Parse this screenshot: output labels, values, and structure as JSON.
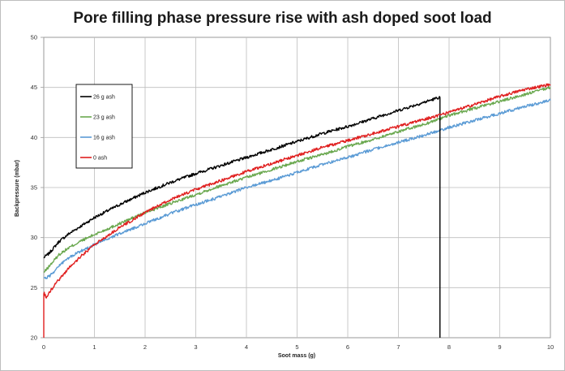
{
  "chart_data": {
    "type": "line",
    "title": "Pore filling phase pressure rise with ash doped soot load",
    "xlabel": "Soot mass (g)",
    "ylabel": "Backpressure (mbar)",
    "xlim": [
      0,
      10
    ],
    "ylim": [
      20,
      50
    ],
    "xticks": [
      "0",
      "1",
      "2",
      "3",
      "4",
      "5",
      "6",
      "7",
      "8",
      "9",
      "10"
    ],
    "yticks": [
      "20",
      "25",
      "30",
      "35",
      "40",
      "45",
      "50"
    ],
    "grid": true,
    "legend_position": "top-left",
    "series": [
      {
        "name": "26 g ash",
        "color": "#000000",
        "x": [
          0,
          0.1,
          0.2,
          0.3,
          0.5,
          0.75,
          1.0,
          1.5,
          2.0,
          2.5,
          3.0,
          3.5,
          4.0,
          4.5,
          5.0,
          5.5,
          6.0,
          6.5,
          7.0,
          7.5,
          7.8,
          7.82,
          7.82
        ],
        "y": [
          28.0,
          28.4,
          29.0,
          29.6,
          30.4,
          31.2,
          32.0,
          33.3,
          34.5,
          35.5,
          36.4,
          37.2,
          38.0,
          38.8,
          39.6,
          40.4,
          41.1,
          41.9,
          42.7,
          43.5,
          44.0,
          44.0,
          20.0
        ]
      },
      {
        "name": "23 g ash",
        "color": "#6aa84f",
        "x": [
          0,
          0.1,
          0.2,
          0.3,
          0.5,
          0.75,
          1.0,
          1.5,
          2.0,
          2.5,
          3.0,
          3.5,
          4.0,
          4.5,
          5.0,
          5.5,
          6.0,
          6.5,
          7.0,
          7.5,
          8.0,
          8.5,
          9.0,
          9.5,
          10.0
        ],
        "y": [
          26.5,
          27.1,
          27.7,
          28.3,
          29.0,
          29.7,
          30.3,
          31.4,
          32.5,
          33.4,
          34.3,
          35.2,
          36.0,
          36.8,
          37.6,
          38.3,
          39.1,
          39.8,
          40.6,
          41.3,
          42.2,
          42.9,
          43.6,
          44.3,
          45.0
        ]
      },
      {
        "name": "16 g ash",
        "color": "#5b9bd5",
        "x": [
          0,
          0.1,
          0.2,
          0.3,
          0.5,
          0.75,
          1.0,
          1.5,
          2.0,
          2.5,
          3.0,
          3.5,
          4.0,
          4.5,
          5.0,
          5.5,
          6.0,
          6.5,
          7.0,
          7.5,
          8.0,
          8.5,
          9.0,
          9.5,
          10.0
        ],
        "y": [
          25.9,
          26.1,
          26.6,
          27.2,
          28.0,
          28.7,
          29.3,
          30.4,
          31.4,
          32.4,
          33.3,
          34.1,
          35.0,
          35.7,
          36.5,
          37.3,
          38.0,
          38.8,
          39.5,
          40.2,
          41.0,
          41.7,
          42.4,
          43.1,
          43.7
        ]
      },
      {
        "name": "0 ash",
        "color": "#e02020",
        "x": [
          0,
          0.0,
          0.05,
          0.1,
          0.2,
          0.3,
          0.5,
          0.75,
          1.0,
          1.5,
          2.0,
          2.5,
          3.0,
          3.5,
          4.0,
          4.5,
          5.0,
          5.5,
          6.0,
          6.5,
          7.0,
          7.5,
          8.0,
          8.5,
          9.0,
          9.5,
          10.0
        ],
        "y": [
          20.0,
          24.5,
          24.0,
          24.4,
          25.2,
          25.8,
          27.0,
          28.2,
          29.3,
          31.0,
          32.5,
          33.8,
          34.8,
          35.7,
          36.6,
          37.4,
          38.2,
          39.0,
          39.7,
          40.4,
          41.1,
          41.8,
          42.5,
          43.3,
          44.1,
          44.8,
          45.3
        ]
      }
    ]
  }
}
